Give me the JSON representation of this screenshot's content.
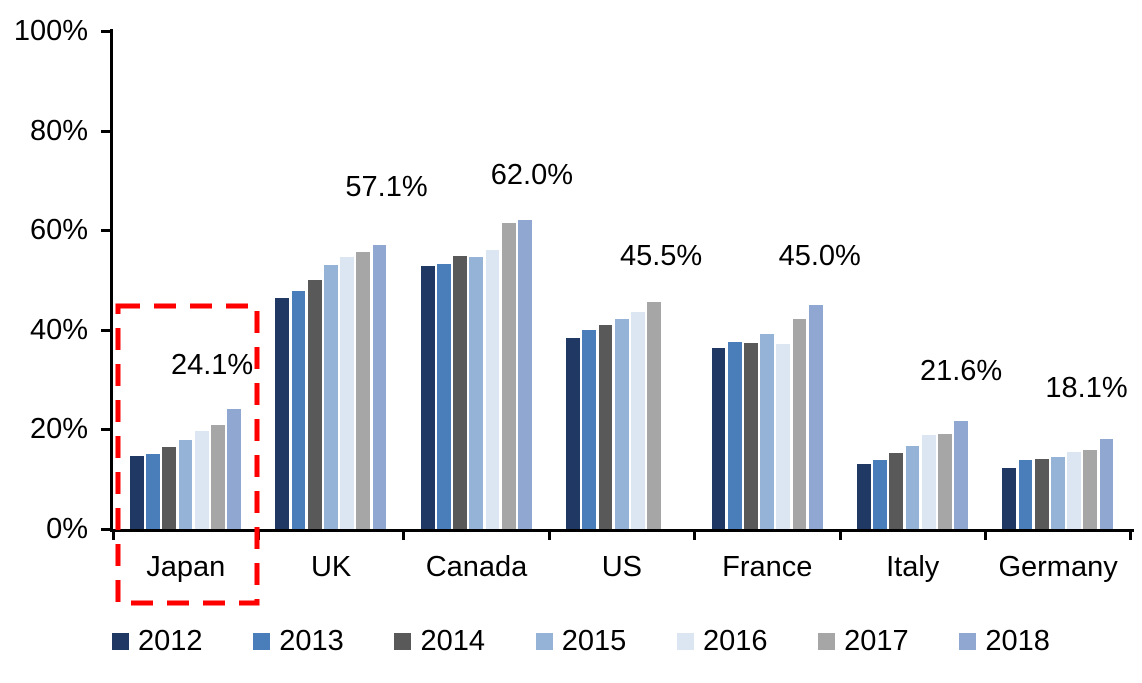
{
  "chart_data": {
    "type": "bar",
    "title": "",
    "categories": [
      "Japan",
      "UK",
      "Canada",
      "US",
      "France",
      "Italy",
      "Germany"
    ],
    "series": [
      {
        "name": "2012",
        "color": "#1F3864",
        "values": [
          14.7,
          46.3,
          52.9,
          38.3,
          36.4,
          13.0,
          12.3
        ]
      },
      {
        "name": "2013",
        "color": "#4A7EBB",
        "values": [
          15.0,
          47.7,
          53.3,
          40.0,
          37.5,
          13.9,
          13.9
        ]
      },
      {
        "name": "2014",
        "color": "#595959",
        "values": [
          16.5,
          49.9,
          54.8,
          40.9,
          37.4,
          15.3,
          14.1
        ]
      },
      {
        "name": "2015",
        "color": "#95B3D7",
        "values": [
          17.9,
          53.1,
          54.6,
          42.1,
          39.1,
          16.7,
          14.5
        ]
      },
      {
        "name": "2016",
        "color": "#DCE6F2",
        "values": [
          19.6,
          54.7,
          56.0,
          43.5,
          37.2,
          18.9,
          15.4
        ]
      },
      {
        "name": "2017",
        "color": "#A6A6A6",
        "values": [
          20.9,
          55.7,
          61.4,
          45.5,
          42.1,
          19.1,
          15.8
        ]
      },
      {
        "name": "2018",
        "color": "#8FA7D1",
        "values": [
          24.1,
          57.1,
          62.0,
          null,
          45.0,
          21.6,
          18.1
        ]
      }
    ],
    "value_labels": [
      "24.1%",
      "57.1%",
      "62.0%",
      "45.5%",
      "45.0%",
      "21.6%",
      "18.1%"
    ],
    "ytick_labels": [
      "0%",
      "20%",
      "40%",
      "60%",
      "80%",
      "100%"
    ],
    "yticks": [
      0,
      20,
      40,
      60,
      80,
      100
    ],
    "ylim": [
      0,
      100
    ],
    "grid": "off",
    "legend_position": "bottom",
    "highlight": {
      "category": "Japan",
      "style": "red-dashed-box",
      "color": "#FF0000"
    }
  }
}
